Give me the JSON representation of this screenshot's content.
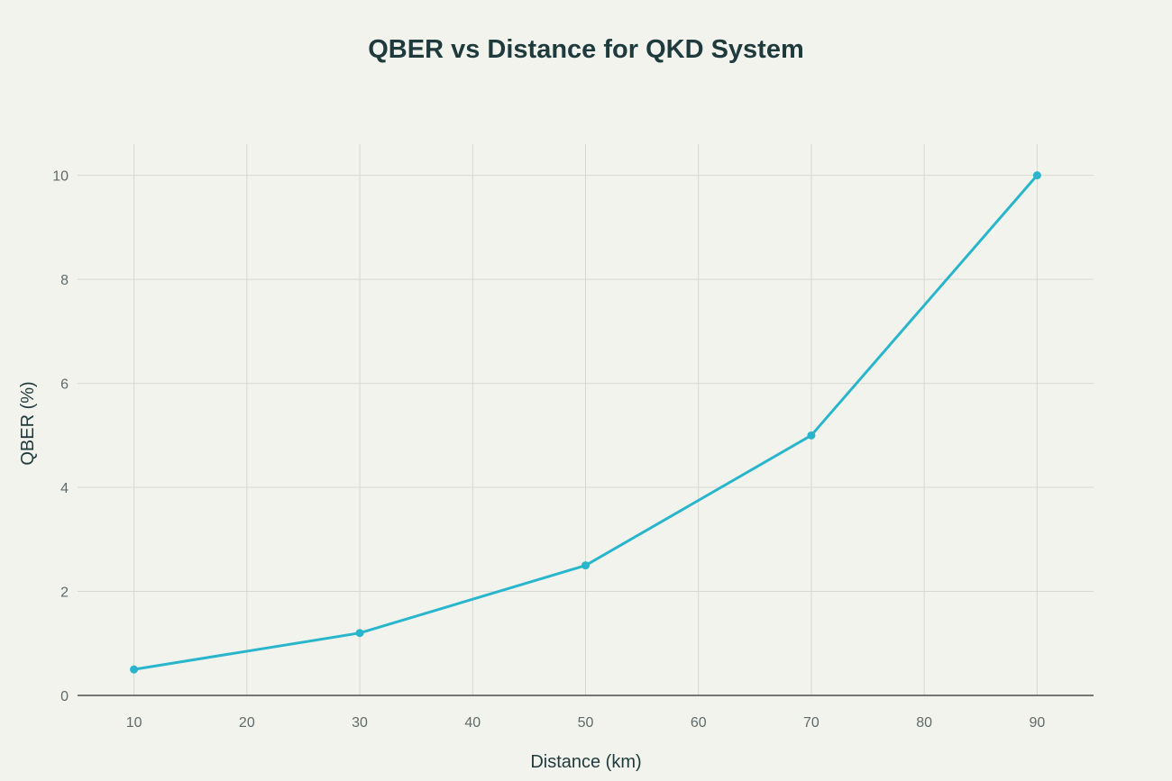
{
  "chart_data": {
    "type": "line",
    "title": "QBER vs Distance for QKD System",
    "xlabel": "Distance (km)",
    "ylabel": "QBER (%)",
    "xlim": [
      5,
      95
    ],
    "ylim": [
      0,
      10.6
    ],
    "xticks": [
      10,
      20,
      30,
      40,
      50,
      60,
      70,
      80,
      90
    ],
    "yticks": [
      0,
      2,
      4,
      6,
      8,
      10
    ],
    "grid": true,
    "series": [
      {
        "name": "QBER",
        "color": "#29b6cc",
        "x": [
          10,
          30,
          50,
          70,
          90
        ],
        "values": [
          0.5,
          1.2,
          2.5,
          5,
          10
        ]
      }
    ]
  }
}
